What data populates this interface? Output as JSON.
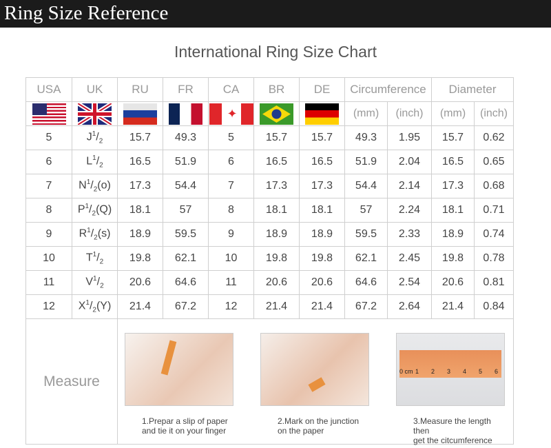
{
  "banner": {
    "title": "Ring Size Reference"
  },
  "chart_title": "International Ring Size Chart",
  "headers": [
    "USA",
    "UK",
    "RU",
    "FR",
    "CA",
    "BR",
    "DE",
    "Circumference",
    "Diameter"
  ],
  "units": [
    "(mm)",
    "(inch)",
    "(mm)",
    "(inch)"
  ],
  "flags": [
    "us-flag-icon",
    "uk-flag-icon",
    "russia-flag-icon",
    "france-flag-icon",
    "canada-flag-icon",
    "brazil-flag-icon",
    "germany-flag-icon"
  ],
  "fraction": {
    "num": "1",
    "den": "2"
  },
  "rows": [
    {
      "usa": "5",
      "uk": "J",
      "uk_suffix": "",
      "ru": "15.7",
      "fr": "49.3",
      "ca": "5",
      "br": "15.7",
      "de": "15.7",
      "circ_mm": "49.3",
      "circ_in": "1.95",
      "dia_mm": "15.7",
      "dia_in": "0.62"
    },
    {
      "usa": "6",
      "uk": "L",
      "uk_suffix": "",
      "ru": "16.5",
      "fr": "51.9",
      "ca": "6",
      "br": "16.5",
      "de": "16.5",
      "circ_mm": "51.9",
      "circ_in": "2.04",
      "dia_mm": "16.5",
      "dia_in": "0.65"
    },
    {
      "usa": "7",
      "uk": "N",
      "uk_suffix": "(o)",
      "ru": "17.3",
      "fr": "54.4",
      "ca": "7",
      "br": "17.3",
      "de": "17.3",
      "circ_mm": "54.4",
      "circ_in": "2.14",
      "dia_mm": "17.3",
      "dia_in": "0.68"
    },
    {
      "usa": "8",
      "uk": "P",
      "uk_suffix": "(Q)",
      "ru": "18.1",
      "fr": "57",
      "ca": "8",
      "br": "18.1",
      "de": "18.1",
      "circ_mm": "57",
      "circ_in": "2.24",
      "dia_mm": "18.1",
      "dia_in": "0.71"
    },
    {
      "usa": "9",
      "uk": "R",
      "uk_suffix": "(s)",
      "ru": "18.9",
      "fr": "59.5",
      "ca": "9",
      "br": "18.9",
      "de": "18.9",
      "circ_mm": "59.5",
      "circ_in": "2.33",
      "dia_mm": "18.9",
      "dia_in": "0.74"
    },
    {
      "usa": "10",
      "uk": "T",
      "uk_suffix": "",
      "ru": "19.8",
      "fr": "62.1",
      "ca": "10",
      "br": "19.8",
      "de": "19.8",
      "circ_mm": "62.1",
      "circ_in": "2.45",
      "dia_mm": "19.8",
      "dia_in": "0.78"
    },
    {
      "usa": "11",
      "uk": "V",
      "uk_suffix": "",
      "ru": "20.6",
      "fr": "64.6",
      "ca": "11",
      "br": "20.6",
      "de": "20.6",
      "circ_mm": "64.6",
      "circ_in": "2.54",
      "dia_mm": "20.6",
      "dia_in": "0.81"
    },
    {
      "usa": "12",
      "uk": "X",
      "uk_suffix": "(Y)",
      "ru": "21.4",
      "fr": "67.2",
      "ca": "12",
      "br": "21.4",
      "de": "21.4",
      "circ_mm": "67.2",
      "circ_in": "2.64",
      "dia_mm": "21.4",
      "dia_in": "0.84"
    }
  ],
  "measure": {
    "label": "Measure",
    "steps": [
      {
        "line1": "1.Prepar a slip of paper",
        "line2": "and tie it on your finger"
      },
      {
        "line1": "2.Mark on the junction",
        "line2": "on the paper"
      },
      {
        "line1": "3.Measure the length then",
        "line2": "get the citcumference"
      }
    ],
    "ruler_labels": [
      "0 cm",
      "1",
      "2",
      "3",
      "4",
      "5",
      "6"
    ]
  }
}
